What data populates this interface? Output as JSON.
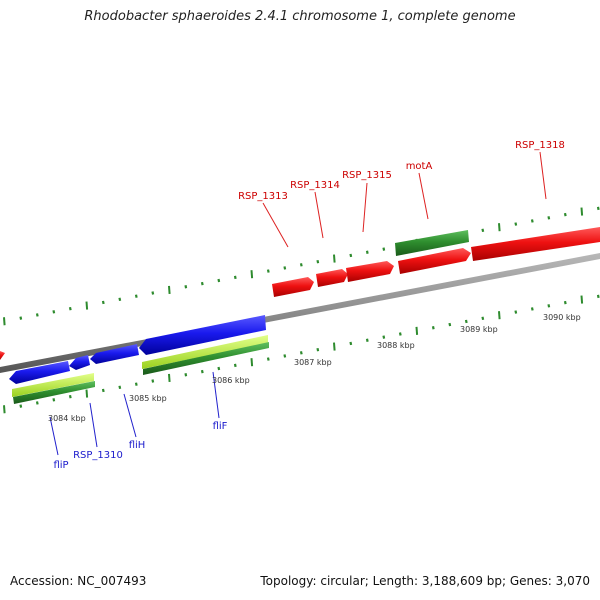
{
  "title": "Rhodobacter sphaeroides 2.4.1 chromosome 1, complete genome",
  "footer": {
    "accession": "Accession: NC_007493",
    "info": "Topology: circular; Length: 3,188,609 bp; Genes: 3,070"
  },
  "colors": {
    "forward_gene": "#ee1111",
    "forward_label": "#cc0000",
    "reverse_gene": "#1a1aee",
    "reverse_label": "#1a1acc",
    "rna_or_other": "#2f8f2f",
    "light_green": "#b6f23a",
    "backbone": "#8c8c8c",
    "tick": "#2e8b2e"
  },
  "scale_labels": [
    "3084 kbp",
    "3085 kbp",
    "3086 kbp",
    "3087 kbp",
    "3088 kbp",
    "3089 kbp",
    "3090 kbp"
  ],
  "forward_gene_labels": [
    "RSP_1313",
    "RSP_1314",
    "RSP_1315",
    "motA",
    "RSP_1318"
  ],
  "reverse_gene_labels": [
    "fliP",
    "RSP_1310",
    "fliH",
    "fliF"
  ]
}
